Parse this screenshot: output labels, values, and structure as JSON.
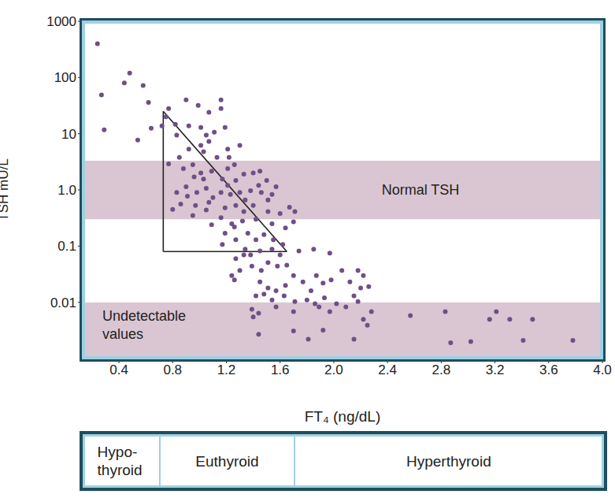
{
  "chart_data": {
    "type": "scatter",
    "x_label": "FT₄ (ng/dL)",
    "y_label": "TSH mU/L",
    "log": "y",
    "grid": false,
    "marker": "circle",
    "color": "#6f4f86",
    "xlim": [
      0.13,
      4.0
    ],
    "ylim": [
      0.001,
      1000
    ],
    "xticks": [
      0.4,
      0.8,
      1.2,
      1.6,
      {
        "value": 2.0,
        "label": "2.0"
      },
      2.4,
      2.8,
      3.2,
      3.6,
      {
        "value": 4.0,
        "label": "4.0"
      }
    ],
    "yticks": [
      0.01,
      0.1,
      {
        "value": 1,
        "label": "1.0"
      },
      10,
      100,
      1000
    ],
    "x": [
      0.24,
      0.27,
      0.29,
      0.48,
      0.44,
      0.58,
      0.62,
      0.54,
      0.64,
      0.72,
      0.77,
      0.75,
      0.9,
      0.99,
      1.07,
      1.16,
      1.16,
      0.82,
      0.83,
      0.92,
      1.01,
      1.05,
      1.11,
      1.19,
      0.92,
      1.01,
      1.03,
      1.07,
      1.13,
      1.21,
      1.22,
      1.3,
      1.26,
      0.77,
      0.85,
      0.88,
      0.95,
      1.01,
      0.96,
      1.03,
      1.09,
      1.17,
      1.21,
      1.27,
      1.33,
      1.4,
      1.45,
      1.5,
      1.57,
      0.9,
      0.83,
      0.91,
      0.98,
      1.05,
      1.1,
      1.16,
      1.3,
      1.38,
      1.46,
      1.51,
      0.97,
      0.86,
      0.8,
      1.05,
      1.19,
      1.27,
      1.33,
      1.4,
      1.51,
      1.6,
      1.67,
      1.71,
      0.95,
      1.09,
      1.16,
      1.24,
      1.32,
      1.42,
      1.54,
      1.64,
      1.7,
      1.19,
      1.27,
      1.36,
      1.42,
      1.48,
      1.55,
      1.62,
      1.34,
      1.38,
      1.45,
      1.54,
      1.6,
      1.74,
      1.85,
      1.97,
      1.27,
      1.33,
      1.24,
      1.26,
      1.3,
      1.39,
      1.46,
      1.51,
      1.58,
      1.65,
      1.45,
      1.51,
      1.57,
      1.64,
      1.7,
      1.77,
      1.83,
      1.87,
      1.92,
      1.98,
      2.06,
      2.12,
      2.2,
      2.22,
      1.42,
      1.48,
      1.54,
      1.63,
      1.71,
      1.8,
      1.86,
      1.93,
      2.02,
      2.09,
      2.18,
      1.39,
      1.44,
      1.4,
      1.57,
      1.7,
      1.89,
      1.97,
      2.15,
      2.26,
      2.28,
      2.25,
      1.44,
      1.7,
      1.81,
      1.92,
      2.15,
      2.22,
      2.57,
      2.83,
      2.87,
      3.02,
      3.16,
      3.21,
      3.31,
      3.41,
      3.48,
      3.78,
      2.18,
      1.07,
      1.23,
      1.34,
      1.44,
      1.54,
      1.21,
      1.17,
      1.26
    ],
    "values": [
      400,
      49,
      11.7,
      120,
      80,
      72,
      36,
      7.7,
      12.5,
      13.8,
      28,
      20,
      40,
      32,
      24,
      40,
      28,
      14.7,
      9.4,
      13.8,
      12.9,
      9.4,
      10.6,
      12.9,
      5.3,
      6.2,
      4.8,
      7.3,
      3.8,
      5.3,
      3.8,
      6.2,
      2.8,
      2.9,
      3.8,
      2.4,
      2.8,
      2.0,
      1.7,
      1.56,
      2.15,
      1.56,
      1.2,
      1.47,
      1.9,
      2.0,
      2.15,
      1.47,
      1.14,
      1.14,
      0.9,
      0.77,
      0.9,
      1.07,
      0.73,
      0.9,
      0.9,
      0.97,
      0.9,
      0.66,
      0.53,
      0.56,
      0.45,
      0.44,
      0.48,
      0.53,
      0.41,
      0.53,
      0.41,
      0.38,
      0.49,
      0.41,
      0.35,
      0.24,
      0.32,
      0.25,
      0.28,
      0.3,
      0.25,
      0.21,
      0.27,
      0.17,
      0.13,
      0.17,
      0.13,
      0.16,
      0.13,
      0.107,
      0.088,
      0.07,
      0.082,
      0.088,
      0.07,
      0.082,
      0.088,
      0.075,
      0.06,
      0.07,
      0.03,
      0.025,
      0.037,
      0.044,
      0.037,
      0.051,
      0.044,
      0.046,
      0.023,
      0.018,
      0.016,
      0.02,
      0.03,
      0.023,
      0.016,
      0.03,
      0.022,
      0.025,
      0.037,
      0.023,
      0.018,
      0.03,
      0.013,
      0.014,
      0.011,
      0.013,
      0.0103,
      0.011,
      0.0094,
      0.012,
      0.0094,
      0.0083,
      0.0103,
      0.0075,
      0.0064,
      0.0055,
      0.0083,
      0.0068,
      0.0083,
      0.0068,
      0.013,
      0.019,
      0.0068,
      0.0039,
      0.0027,
      0.0031,
      0.0022,
      0.0032,
      0.0022,
      0.005,
      0.0058,
      0.0068,
      0.0019,
      0.002,
      0.005,
      0.0068,
      0.005,
      0.0021,
      0.005,
      0.0021,
      0.037,
      0.6,
      0.83,
      0.66,
      1.2,
      0.83,
      2.4,
      0.107,
      0.22
    ],
    "bands": [
      {
        "label": "Normal TSH",
        "range": [
          0.3,
          3.3
        ]
      },
      {
        "label": "Undetectable values",
        "range": [
          0.001,
          0.01
        ]
      }
    ],
    "triangle": [
      [
        0.73,
        25
      ],
      [
        0.73,
        0.08
      ],
      [
        1.65,
        0.08
      ]
    ],
    "status_ranges": [
      {
        "label": "Hypo-thyroid",
        "range": [
          0.13,
          0.7
        ]
      },
      {
        "label": "Euthyroid",
        "range": [
          0.7,
          1.7
        ]
      },
      {
        "label": "Hyperthyroid",
        "range": [
          1.7,
          4.0
        ]
      }
    ]
  }
}
